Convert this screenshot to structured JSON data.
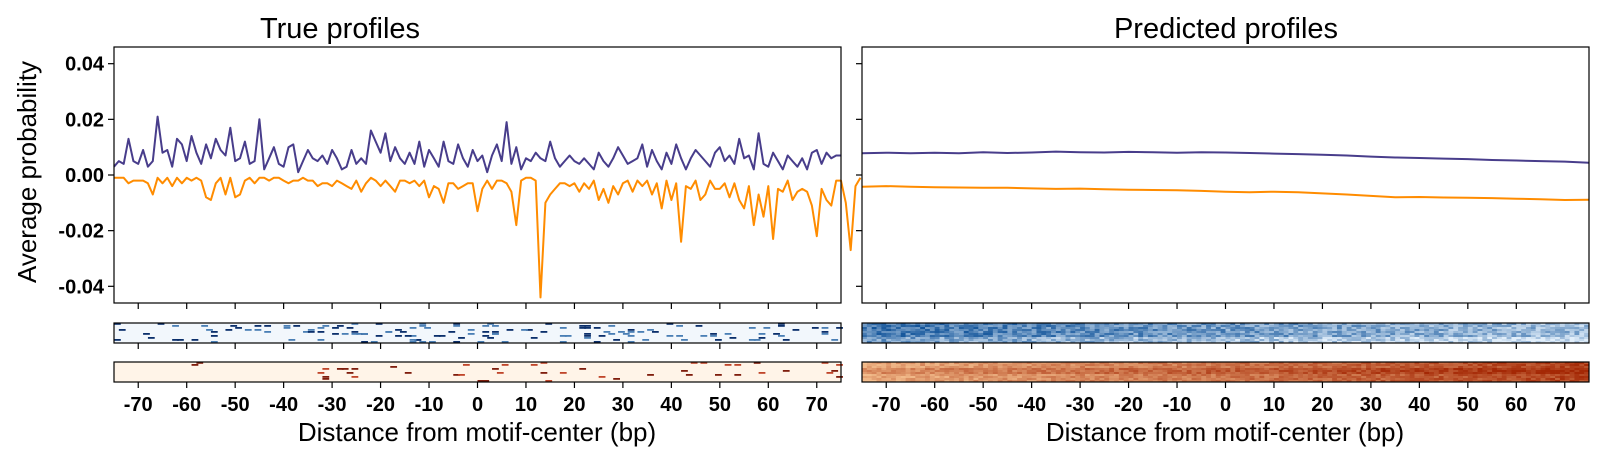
{
  "chart_data": [
    {
      "type": "line",
      "title": "True profiles",
      "xlabel": "Distance from motif-center (bp)",
      "ylabel": "Average probability",
      "xlim": [
        -75,
        75
      ],
      "ylim": [
        -0.046,
        0.046
      ],
      "xticks": [
        "-70",
        "-60",
        "-50",
        "-40",
        "-30",
        "-20",
        "-10",
        "0",
        "10",
        "20",
        "30",
        "40",
        "50",
        "60",
        "70"
      ],
      "yticks": [
        "0.04",
        "0.02",
        "0.00",
        "-0.02",
        "-0.04"
      ],
      "grid": false,
      "series": [
        {
          "color": "#483d8b",
          "x_start": -75,
          "x_step": 1,
          "values": [
            0.003,
            0.005,
            0.004,
            0.013,
            0.005,
            0.004,
            0.009,
            0.003,
            0.005,
            0.021,
            0.008,
            0.009,
            0.003,
            0.013,
            0.011,
            0.005,
            0.014,
            0.008,
            0.004,
            0.011,
            0.006,
            0.013,
            0.009,
            0.007,
            0.017,
            0.005,
            0.006,
            0.012,
            0.004,
            0.005,
            0.02,
            0.002,
            0.006,
            0.01,
            0.004,
            0.003,
            0.01,
            0.011,
            0.001,
            0.005,
            0.009,
            0.006,
            0.005,
            0.007,
            0.004,
            0.009,
            0.006,
            0.002,
            0.003,
            0.009,
            0.004,
            0.006,
            0.004,
            0.016,
            0.012,
            0.008,
            0.015,
            0.005,
            0.01,
            0.006,
            0.004,
            0.008,
            0.004,
            0.012,
            0.003,
            0.009,
            0.006,
            0.003,
            0.012,
            0.005,
            0.004,
            0.011,
            0.006,
            0.003,
            0.009,
            0.005,
            0.007,
            0.001,
            0.007,
            0.011,
            0.005,
            0.019,
            0.004,
            0.01,
            0.002,
            0.006,
            0.005,
            0.008,
            0.006,
            0.005,
            0.012,
            0.006,
            0.003,
            0.005,
            0.007,
            0.005,
            0.004,
            0.006,
            0.004,
            0.002,
            0.008,
            0.005,
            0.003,
            0.006,
            0.01,
            0.007,
            0.004,
            0.005,
            0.006,
            0.011,
            0.003,
            0.009,
            0.005,
            0.002,
            0.008,
            0.004,
            0.011,
            0.006,
            0.002,
            0.006,
            0.009,
            0.007,
            0.005,
            0.003,
            0.008,
            0.01,
            0.005,
            0.007,
            0.004,
            0.013,
            0.006,
            0.007,
            0.002,
            0.015,
            0.004,
            0.003,
            0.008,
            0.005,
            0.002,
            0.007,
            0.005,
            0.003,
            0.006,
            0.002,
            0.008,
            0.009,
            0.004,
            0.008,
            0.006,
            0.007,
            0.007
          ]
        },
        {
          "color": "#ff8c00",
          "x_start": -75,
          "x_step": 1,
          "values": [
            -0.001,
            -0.001,
            -0.001,
            -0.003,
            -0.002,
            -0.002,
            -0.002,
            -0.003,
            -0.007,
            -0.001,
            -0.003,
            -0.001,
            -0.004,
            -0.001,
            -0.003,
            -0.001,
            -0.002,
            -0.001,
            -0.002,
            -0.008,
            -0.009,
            -0.003,
            -0.001,
            -0.007,
            -0.001,
            -0.008,
            -0.007,
            -0.002,
            -0.001,
            -0.003,
            -0.001,
            -0.001,
            -0.002,
            -0.001,
            -0.001,
            -0.002,
            -0.003,
            -0.002,
            -0.002,
            -0.001,
            -0.002,
            -0.002,
            -0.004,
            -0.003,
            -0.003,
            -0.004,
            -0.002,
            -0.003,
            -0.004,
            -0.005,
            -0.002,
            -0.006,
            -0.003,
            -0.001,
            -0.002,
            -0.004,
            -0.002,
            -0.004,
            -0.006,
            -0.002,
            -0.002,
            -0.003,
            -0.002,
            -0.004,
            -0.002,
            -0.008,
            -0.004,
            -0.005,
            -0.01,
            -0.003,
            -0.003,
            -0.005,
            -0.004,
            -0.003,
            -0.003,
            -0.013,
            -0.005,
            -0.002,
            -0.005,
            -0.002,
            -0.002,
            -0.003,
            -0.006,
            -0.018,
            -0.002,
            -0.001,
            -0.001,
            -0.002,
            -0.044,
            -0.01,
            -0.007,
            -0.005,
            -0.003,
            -0.003,
            -0.004,
            -0.003,
            -0.006,
            -0.003,
            -0.005,
            -0.002,
            -0.009,
            -0.005,
            -0.01,
            -0.004,
            -0.007,
            -0.003,
            -0.002,
            -0.006,
            -0.002,
            -0.004,
            -0.002,
            -0.007,
            -0.003,
            -0.012,
            -0.002,
            -0.009,
            -0.003,
            -0.024,
            -0.004,
            -0.005,
            -0.002,
            -0.009,
            -0.007,
            -0.002,
            -0.005,
            -0.005,
            -0.003,
            -0.008,
            -0.003,
            -0.009,
            -0.012,
            -0.004,
            -0.018,
            -0.007,
            -0.015,
            -0.004,
            -0.023,
            -0.005,
            -0.006,
            -0.002,
            -0.009,
            -0.006,
            -0.005,
            -0.006,
            -0.011,
            -0.022,
            -0.005,
            -0.009,
            -0.011,
            -0.002,
            -0.002,
            -0.01,
            -0.027,
            -0.004,
            -0.001
          ]
        }
      ],
      "heatmap_colormaps": [
        "blues-sparse",
        "oranges-sparse"
      ]
    },
    {
      "type": "line",
      "title": "Predicted profiles",
      "xlabel": "Distance from motif-center (bp)",
      "xlim": [
        -75,
        75
      ],
      "ylim": [
        -0.046,
        0.046
      ],
      "xticks": [
        "-70",
        "-60",
        "-50",
        "-40",
        "-30",
        "-20",
        "-10",
        "0",
        "10",
        "20",
        "30",
        "40",
        "50",
        "60",
        "70"
      ],
      "grid": false,
      "series": [
        {
          "color": "#483d8b",
          "x_start": -75,
          "x_step": 5,
          "values": [
            0.0078,
            0.008,
            0.0078,
            0.008,
            0.0078,
            0.0082,
            0.0079,
            0.0081,
            0.0084,
            0.0082,
            0.0081,
            0.0083,
            0.0082,
            0.008,
            0.0082,
            0.0081,
            0.0079,
            0.0077,
            0.0075,
            0.0073,
            0.007,
            0.0066,
            0.0063,
            0.0061,
            0.0059,
            0.0057,
            0.0054,
            0.0052,
            0.005,
            0.0048,
            0.0044
          ]
        },
        {
          "color": "#ff8c00",
          "x_start": -75,
          "x_step": 5,
          "values": [
            -0.0042,
            -0.004,
            -0.0042,
            -0.0044,
            -0.0045,
            -0.0046,
            -0.0046,
            -0.0048,
            -0.005,
            -0.0049,
            -0.0051,
            -0.0053,
            -0.0054,
            -0.0055,
            -0.0057,
            -0.006,
            -0.0062,
            -0.006,
            -0.0062,
            -0.0066,
            -0.007,
            -0.0075,
            -0.008,
            -0.0079,
            -0.0081,
            -0.0082,
            -0.0083,
            -0.0085,
            -0.0087,
            -0.009,
            -0.0089
          ]
        }
      ],
      "heatmap_colormaps": [
        "blues-dense",
        "oranges-dense"
      ]
    }
  ]
}
